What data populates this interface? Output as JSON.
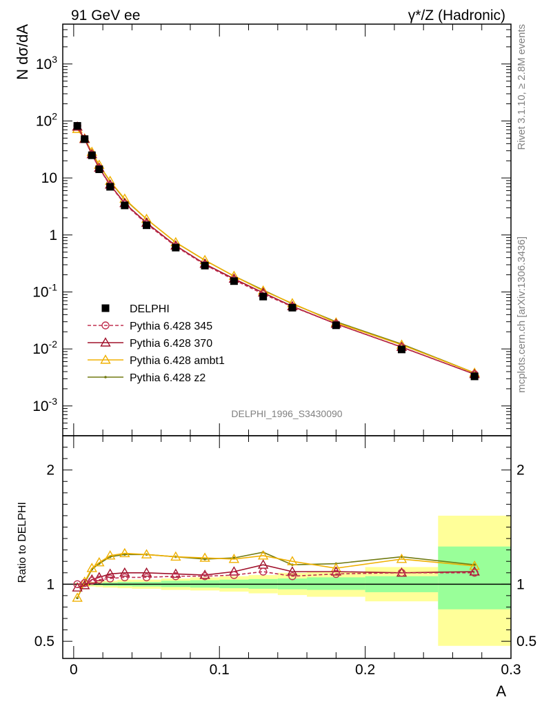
{
  "header": {
    "left": "91 GeV ee",
    "right": "γ*/Z (Hadronic)"
  },
  "side_text": {
    "top": "Rivet 3.1.10, ≥ 2.8M events",
    "bottom": "mcplots.cern.ch [arXiv:1306.3436]"
  },
  "watermark": "DELPHI_1996_S3430090",
  "chart_data": [
    {
      "type": "scatter",
      "panel": "main",
      "ylabel": "N dσ/dA",
      "yscale": "log",
      "ylim": [
        0.0003,
        5000
      ],
      "xlim": [
        -0.0075,
        0.3
      ],
      "ytick_labels": [
        "10^-3",
        "10^-2",
        "10^-1",
        "1",
        "10",
        "10^2",
        "10^3"
      ],
      "x": [
        0.0025,
        0.0075,
        0.0125,
        0.0175,
        0.025,
        0.035,
        0.05,
        0.07,
        0.09,
        0.11,
        0.13,
        0.15,
        0.18,
        0.225,
        0.275
      ],
      "series": [
        {
          "name": "DELPHI",
          "color": "#000000",
          "marker": "square",
          "values": [
            82,
            48,
            25,
            14.2,
            7.0,
            3.3,
            1.48,
            0.6,
            0.29,
            0.155,
            0.083,
            0.053,
            0.026,
            0.0098,
            0.0033
          ]
        },
        {
          "name": "Pythia 6.428 345",
          "color": "#c03050",
          "marker": "open-circle",
          "line": "dashed",
          "values": [
            82,
            48.5,
            25.8,
            14.8,
            7.4,
            3.5,
            1.56,
            0.63,
            0.3,
            0.163,
            0.092,
            0.055,
            0.0275,
            0.0107,
            0.0036
          ]
        },
        {
          "name": "Pythia 6.428 370",
          "color": "#a0102a",
          "marker": "open-triangle",
          "line": "solid",
          "values": [
            79,
            48,
            26,
            15.0,
            7.6,
            3.6,
            1.63,
            0.65,
            0.31,
            0.17,
            0.097,
            0.056,
            0.0275,
            0.0108,
            0.0036
          ]
        },
        {
          "name": "Pythia 6.428 ambt1",
          "color": "#f0b000",
          "marker": "open-triangle",
          "line": "solid",
          "values": [
            72,
            49,
            28.5,
            16.9,
            8.8,
            4.3,
            1.9,
            0.74,
            0.36,
            0.19,
            0.105,
            0.063,
            0.029,
            0.0118,
            0.0038
          ]
        },
        {
          "name": "Pythia 6.428 z2",
          "color": "#707a10",
          "marker": "dot",
          "line": "solid",
          "values": [
            72,
            49,
            28.3,
            16.8,
            8.7,
            4.2,
            1.9,
            0.74,
            0.36,
            0.19,
            0.108,
            0.062,
            0.03,
            0.0122,
            0.0038
          ]
        }
      ]
    },
    {
      "type": "line",
      "panel": "ratio",
      "ylabel": "Ratio to DELPHI",
      "xlabel": "A",
      "ylim": [
        0.35,
        2.3
      ],
      "xlim": [
        -0.0075,
        0.3
      ],
      "ytick_labels": [
        "0.5",
        "1",
        "2"
      ],
      "xtick_labels": [
        "0",
        "0.1",
        "0.2",
        "0.3"
      ],
      "bands": {
        "edges": [
          0,
          0.005,
          0.01,
          0.015,
          0.02,
          0.03,
          0.04,
          0.06,
          0.08,
          0.1,
          0.12,
          0.14,
          0.16,
          0.2,
          0.25,
          0.3
        ],
        "yellow": [
          [
            0.995,
            1.01
          ],
          [
            0.985,
            1.015
          ],
          [
            0.98,
            1.02
          ],
          [
            0.975,
            1.025
          ],
          [
            0.97,
            1.03
          ],
          [
            0.965,
            1.04
          ],
          [
            0.96,
            1.04
          ],
          [
            0.95,
            1.05
          ],
          [
            0.945,
            1.06
          ],
          [
            0.935,
            1.07
          ],
          [
            0.92,
            1.08
          ],
          [
            0.905,
            1.1
          ],
          [
            0.89,
            1.11
          ],
          [
            0.85,
            1.15
          ],
          [
            0.46,
            1.6
          ]
        ],
        "green": [
          [
            0.997,
            1.005
          ],
          [
            0.993,
            1.008
          ],
          [
            0.99,
            1.01
          ],
          [
            0.99,
            1.01
          ],
          [
            0.985,
            1.015
          ],
          [
            0.983,
            1.02
          ],
          [
            0.98,
            1.02
          ],
          [
            0.975,
            1.03
          ],
          [
            0.97,
            1.035
          ],
          [
            0.965,
            1.04
          ],
          [
            0.96,
            1.045
          ],
          [
            0.955,
            1.05
          ],
          [
            0.95,
            1.06
          ],
          [
            0.93,
            1.07
          ],
          [
            0.78,
            1.33
          ]
        ]
      },
      "series": [
        {
          "name": "Pythia 6.428 345",
          "values": [
            1.0,
            1.01,
            1.03,
            1.04,
            1.05,
            1.06,
            1.06,
            1.07,
            1.07,
            1.08,
            1.11,
            1.07,
            1.09,
            1.1,
            1.1
          ]
        },
        {
          "name": "Pythia 6.428 370",
          "values": [
            0.97,
            0.99,
            1.04,
            1.06,
            1.09,
            1.1,
            1.1,
            1.09,
            1.08,
            1.11,
            1.17,
            1.11,
            1.11,
            1.1,
            1.11
          ]
        },
        {
          "name": "Pythia 6.428 ambt1",
          "values": [
            0.88,
            1.02,
            1.14,
            1.19,
            1.25,
            1.27,
            1.26,
            1.24,
            1.23,
            1.22,
            1.25,
            1.2,
            1.14,
            1.22,
            1.16
          ]
        },
        {
          "name": "Pythia 6.428 z2",
          "values": [
            0.88,
            1.01,
            1.13,
            1.18,
            1.24,
            1.26,
            1.26,
            1.24,
            1.22,
            1.23,
            1.28,
            1.17,
            1.18,
            1.24,
            1.17
          ]
        }
      ]
    }
  ]
}
